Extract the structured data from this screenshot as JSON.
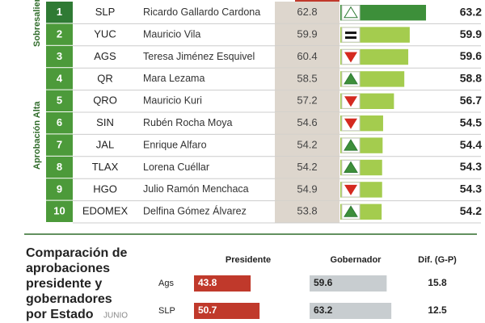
{
  "ranking": {
    "groups": [
      "Sobresaliente",
      "Aprobación Alta"
    ],
    "rows": [
      {
        "rank": "1",
        "state": "SLP",
        "name": "Ricardo Gallardo Cardona",
        "previous": "62.8",
        "value": 63.2,
        "trend": "up"
      },
      {
        "rank": "2",
        "state": "YUC",
        "name": "Mauricio Vila",
        "previous": "59.9",
        "value": 59.9,
        "trend": "equal"
      },
      {
        "rank": "3",
        "state": "AGS",
        "name": "Teresa Jiménez Esquivel",
        "previous": "60.4",
        "value": 59.6,
        "trend": "down"
      },
      {
        "rank": "4",
        "state": "QR",
        "name": "Mara Lezama",
        "previous": "58.5",
        "value": 58.8,
        "trend": "up"
      },
      {
        "rank": "5",
        "state": "QRO",
        "name": "Mauricio Kuri",
        "previous": "57.2",
        "value": 56.7,
        "trend": "down"
      },
      {
        "rank": "6",
        "state": "SIN",
        "name": "Rubén Rocha Moya",
        "previous": "54.6",
        "value": 54.5,
        "trend": "down"
      },
      {
        "rank": "7",
        "state": "JAL",
        "name": "Enrique Alfaro",
        "previous": "54.2",
        "value": 54.4,
        "trend": "up"
      },
      {
        "rank": "8",
        "state": "TLAX",
        "name": "Lorena Cuéllar",
        "previous": "54.2",
        "value": 54.3,
        "trend": "up"
      },
      {
        "rank": "9",
        "state": "HGO",
        "name": "Julio Ramón Menchaca",
        "previous": "54.9",
        "value": 54.3,
        "trend": "down"
      },
      {
        "rank": "10",
        "state": "EDOMEX",
        "name": "Delfina Gómez Álvarez",
        "previous": "53.8",
        "value": 54.2,
        "trend": "up"
      }
    ]
  },
  "comparison": {
    "title": [
      "Comparación de",
      "aprobaciones",
      "presidente y",
      "gobernadores",
      "por Estado"
    ],
    "note": "JUNIO",
    "headers": [
      "Presidente",
      "Gobernador",
      "Dif. (G-P)"
    ],
    "rows": [
      {
        "state": "Ags",
        "president": 43.8,
        "governor": 59.6,
        "diff": 15.8
      },
      {
        "state": "SLP",
        "president": 50.7,
        "governor": 63.2,
        "diff": 12.5
      }
    ]
  }
}
